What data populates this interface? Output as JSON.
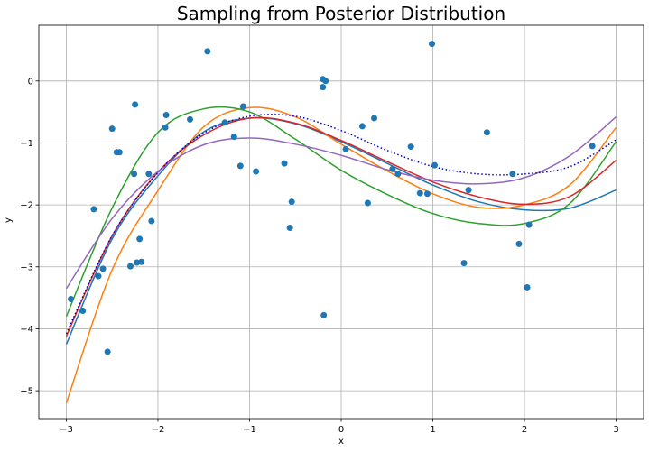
{
  "chart_data": {
    "type": "scatter",
    "title": "Sampling from Posterior Distribution",
    "xlabel": "x",
    "ylabel": "y",
    "xlim": [
      -3.3,
      3.3
    ],
    "ylim": [
      -5.45,
      0.9
    ],
    "xticks": [
      -3,
      -2,
      -1,
      0,
      1,
      2,
      3
    ],
    "yticks": [
      -5,
      -4,
      -3,
      -2,
      -1,
      0
    ],
    "grid": true,
    "colors": {
      "points": "#1f77b4",
      "mean": "#0000cc",
      "samples": [
        "#1f77b4",
        "#ff7f0e",
        "#2ca02c",
        "#d62728",
        "#9467bd"
      ]
    },
    "points": {
      "x": [
        -2.95,
        -2.82,
        -2.7,
        -2.65,
        -2.6,
        -2.55,
        -2.5,
        -2.45,
        -2.42,
        -2.3,
        -2.26,
        -2.25,
        -2.23,
        -2.2,
        -2.18,
        -2.1,
        -2.07,
        -1.92,
        -1.91,
        -1.65,
        -1.46,
        -1.27,
        -1.17,
        -1.1,
        -1.07,
        -0.93,
        -0.62,
        -0.56,
        -0.54,
        -0.2,
        -0.2,
        -0.19,
        -0.17,
        0.05,
        0.23,
        0.29,
        0.36,
        0.56,
        0.62,
        0.76,
        0.86,
        0.94,
        0.99,
        1.02,
        1.34,
        1.39,
        1.59,
        1.87,
        1.94,
        2.03,
        2.05,
        2.74
      ],
      "y": [
        -3.52,
        -3.71,
        -2.07,
        -3.15,
        -3.03,
        -4.37,
        -0.77,
        -1.15,
        -1.15,
        -2.99,
        -1.5,
        -0.38,
        -2.93,
        -2.55,
        -2.92,
        -1.5,
        -2.26,
        -0.75,
        -0.55,
        -0.62,
        0.48,
        -0.67,
        -0.9,
        -1.37,
        -0.41,
        -1.46,
        -1.33,
        -2.37,
        -1.95,
        0.03,
        -0.1,
        -3.78,
        0.0,
        -1.1,
        -0.73,
        -1.97,
        -0.6,
        -1.42,
        -1.5,
        -1.06,
        -1.81,
        -1.82,
        0.6,
        -1.36,
        -2.94,
        -1.76,
        -0.83,
        -1.5,
        -2.63,
        -3.33,
        -2.32,
        -1.05
      ]
    },
    "mean_curve": {
      "style": "dotted",
      "x": [
        -3,
        -2.5,
        -2,
        -1.5,
        -1,
        -0.5,
        0,
        0.5,
        1,
        1.5,
        2,
        2.5,
        3
      ],
      "y": [
        -4.08,
        -2.5,
        -1.48,
        -0.84,
        -0.57,
        -0.57,
        -0.8,
        -1.12,
        -1.38,
        -1.5,
        -1.5,
        -1.38,
        -0.95
      ]
    },
    "sample_curves": [
      {
        "x": [
          -3,
          -2.5,
          -2,
          -1.5,
          -1,
          -0.5,
          0,
          0.5,
          1,
          1.5,
          2,
          2.5,
          3
        ],
        "y": [
          -4.25,
          -2.55,
          -1.53,
          -0.82,
          -0.6,
          -0.69,
          -0.98,
          -1.33,
          -1.68,
          -1.95,
          -2.08,
          -2.05,
          -1.76
        ]
      },
      {
        "x": [
          -3,
          -2.5,
          -2,
          -1.5,
          -1,
          -0.5,
          0,
          0.5,
          1,
          1.5,
          2,
          2.5,
          3
        ],
        "y": [
          -5.2,
          -3.05,
          -1.77,
          -0.74,
          -0.43,
          -0.58,
          -1.02,
          -1.45,
          -1.82,
          -2.04,
          -2.0,
          -1.67,
          -0.75
        ]
      },
      {
        "x": [
          -3,
          -2.5,
          -2,
          -1.5,
          -1,
          -0.5,
          0,
          0.5,
          1,
          1.5,
          2,
          2.5,
          3
        ],
        "y": [
          -3.8,
          -2.05,
          -0.83,
          -0.45,
          -0.5,
          -0.94,
          -1.44,
          -1.83,
          -2.14,
          -2.3,
          -2.3,
          -1.97,
          -0.98
        ]
      },
      {
        "x": [
          -3,
          -2.5,
          -2,
          -1.5,
          -1,
          -0.5,
          0,
          0.5,
          1,
          1.5,
          2,
          2.5,
          3
        ],
        "y": [
          -4.12,
          -2.5,
          -1.47,
          -0.87,
          -0.6,
          -0.68,
          -0.96,
          -1.3,
          -1.63,
          -1.87,
          -1.99,
          -1.86,
          -1.28
        ]
      },
      {
        "x": [
          -3,
          -2.5,
          -2,
          -1.5,
          -1,
          -0.5,
          0,
          0.5,
          1,
          1.5,
          2,
          2.5,
          3
        ],
        "y": [
          -3.35,
          -2.22,
          -1.46,
          -1.03,
          -0.92,
          -1.02,
          -1.2,
          -1.43,
          -1.6,
          -1.66,
          -1.56,
          -1.2,
          -0.58
        ]
      }
    ]
  }
}
